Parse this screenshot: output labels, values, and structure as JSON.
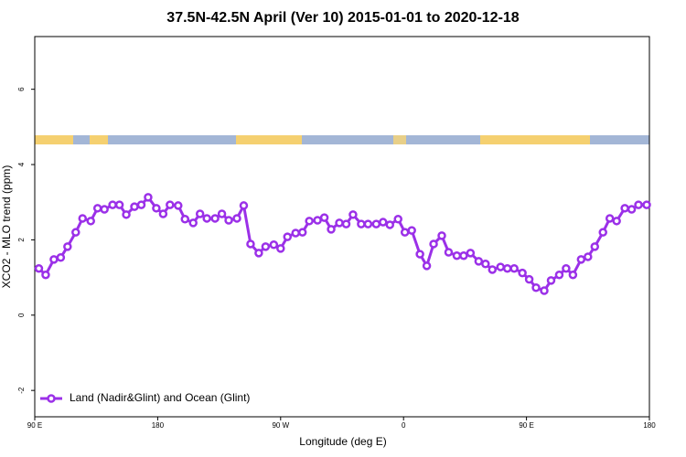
{
  "chart_data": {
    "type": "line",
    "title": "37.5N-42.5N April (Ver 10)   2015-01-01 to 2020-12-18",
    "x_label": "Longitude (deg E)",
    "y_label": "XCO2 - MLO trend (ppm)",
    "xlim": [
      90,
      540
    ],
    "xticks": [
      {
        "value": 90,
        "label": "90 E"
      },
      180,
      {
        "value": 270,
        "label": "90 W"
      },
      {
        "value": 360,
        "label": "0"
      },
      {
        "value": 450,
        "label": "90 E"
      },
      {
        "value": 540,
        "label": "180"
      }
    ],
    "ylim": [
      -2.7,
      7.4
    ],
    "yticks": [
      -2,
      0,
      2,
      4,
      6
    ],
    "legend_position": "bottom-left",
    "x": [
      93,
      98,
      104,
      109,
      114,
      120,
      125,
      131,
      136,
      141,
      147,
      152,
      157,
      163,
      168,
      173,
      179,
      184,
      189,
      195,
      200,
      206,
      211,
      216,
      222,
      227,
      232,
      238,
      243,
      248,
      254,
      259,
      265,
      270,
      275,
      281,
      286,
      291,
      297,
      302,
      307,
      313,
      318,
      323,
      329,
      334,
      340,
      345,
      350,
      356,
      361,
      366,
      372,
      377,
      382,
      388,
      393,
      399,
      404,
      409,
      415,
      420,
      425,
      431,
      436,
      441,
      447,
      452,
      457,
      463,
      468,
      474,
      479,
      484,
      490,
      495,
      500,
      506,
      511,
      516,
      522,
      527,
      532,
      538
    ],
    "series": [
      {
        "name": "Land (Nadir&Glint) and Ocean (Glint)",
        "color": "#9b30e8",
        "values": [
          1.24,
          1.07,
          1.48,
          1.53,
          1.82,
          2.2,
          2.57,
          2.5,
          2.84,
          2.81,
          2.93,
          2.93,
          2.67,
          2.88,
          2.93,
          3.13,
          2.84,
          2.69,
          2.93,
          2.91,
          2.55,
          2.45,
          2.69,
          2.57,
          2.57,
          2.69,
          2.52,
          2.57,
          2.91,
          1.89,
          1.65,
          1.82,
          1.87,
          1.77,
          2.08,
          2.18,
          2.2,
          2.5,
          2.52,
          2.59,
          2.28,
          2.45,
          2.42,
          2.67,
          2.42,
          2.42,
          2.42,
          2.47,
          2.4,
          2.55,
          2.2,
          2.25,
          1.62,
          1.31,
          1.89,
          2.11,
          1.67,
          1.58,
          1.58,
          1.65,
          1.43,
          1.36,
          1.21,
          1.28,
          1.24,
          1.24,
          1.12,
          0.95,
          0.73,
          0.65,
          0.92,
          1.07,
          1.24,
          1.07,
          1.48,
          1.55,
          1.82,
          2.2,
          2.57,
          2.5,
          2.84,
          2.81,
          2.93,
          2.93
        ]
      }
    ]
  }
}
